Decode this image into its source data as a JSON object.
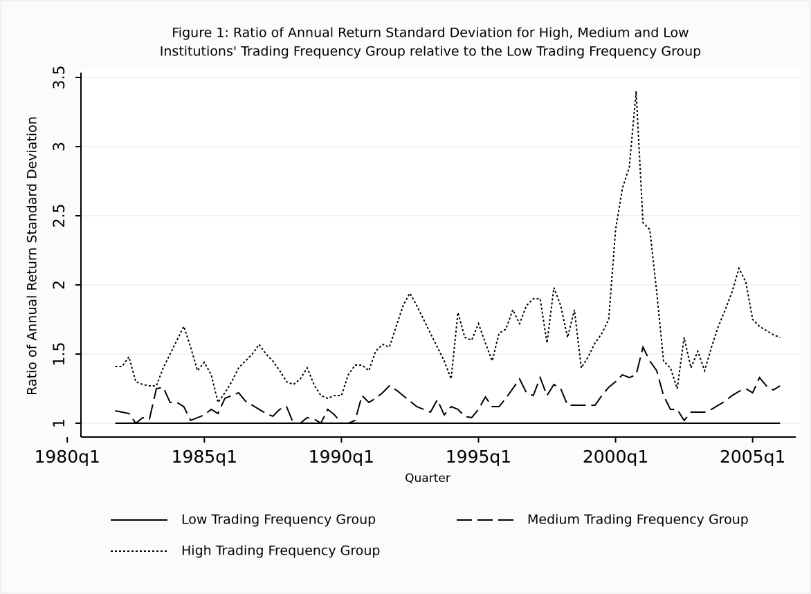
{
  "chart_data": {
    "type": "line",
    "title": [
      "Figure 1: Ratio of Annual Return Standard Deviation for High, Medium and Low",
      "Institutions' Trading Frequency Group relative to the Low Trading Frequency Group"
    ],
    "xlabel": "Quarter",
    "ylabel": "Ratio of Annual Return Standard Deviation",
    "x": [
      "1981q4",
      "1982q1",
      "1982q2",
      "1982q3",
      "1982q4",
      "1983q1",
      "1983q2",
      "1983q3",
      "1983q4",
      "1984q1",
      "1984q2",
      "1984q3",
      "1984q4",
      "1985q1",
      "1985q2",
      "1985q3",
      "1985q4",
      "1986q1",
      "1986q2",
      "1986q3",
      "1986q4",
      "1987q1",
      "1987q2",
      "1987q3",
      "1987q4",
      "1988q1",
      "1988q2",
      "1988q3",
      "1988q4",
      "1989q1",
      "1989q2",
      "1989q3",
      "1989q4",
      "1990q1",
      "1990q2",
      "1990q3",
      "1990q4",
      "1991q1",
      "1991q2",
      "1991q3",
      "1991q4",
      "1992q1",
      "1992q2",
      "1992q3",
      "1992q4",
      "1993q1",
      "1993q2",
      "1993q3",
      "1993q4",
      "1994q1",
      "1994q2",
      "1994q3",
      "1994q4",
      "1995q1",
      "1995q2",
      "1995q3",
      "1995q4",
      "1996q1",
      "1996q2",
      "1996q3",
      "1996q4",
      "1997q1",
      "1997q2",
      "1997q3",
      "1997q4",
      "1998q1",
      "1998q2",
      "1998q3",
      "1998q4",
      "1999q1",
      "1999q2",
      "1999q3",
      "1999q4",
      "2000q1",
      "2000q2",
      "2000q3",
      "2000q4",
      "2001q1",
      "2001q2",
      "2001q3",
      "2001q4",
      "2002q1",
      "2002q2",
      "2002q3",
      "2002q4",
      "2003q1",
      "2003q2",
      "2003q3",
      "2003q4",
      "2004q1",
      "2004q2",
      "2004q3",
      "2004q4",
      "2005q1",
      "2005q2",
      "2005q3",
      "2005q4",
      "2006q1"
    ],
    "series": [
      {
        "name": "Low Trading Frequency Group",
        "color": "#000000",
        "dash": "none",
        "values": [
          1,
          1,
          1,
          1,
          1,
          1,
          1,
          1,
          1,
          1,
          1,
          1,
          1,
          1,
          1,
          1,
          1,
          1,
          1,
          1,
          1,
          1,
          1,
          1,
          1,
          1,
          1,
          1,
          1,
          1,
          1,
          1,
          1,
          1,
          1,
          1,
          1,
          1,
          1,
          1,
          1,
          1,
          1,
          1,
          1,
          1,
          1,
          1,
          1,
          1,
          1,
          1,
          1,
          1,
          1,
          1,
          1,
          1,
          1,
          1,
          1,
          1,
          1,
          1,
          1,
          1,
          1,
          1,
          1,
          1,
          1,
          1,
          1,
          1,
          1,
          1,
          1,
          1,
          1,
          1,
          1,
          1,
          1,
          1,
          1,
          1,
          1,
          1,
          1,
          1,
          1,
          1,
          1,
          1,
          1,
          1,
          1,
          1
        ]
      },
      {
        "name": "Medium Trading Frequency Group",
        "color": "#000000",
        "dash": "22 8",
        "values": [
          1.09,
          1.08,
          1.07,
          1.0,
          1.04,
          1.03,
          1.25,
          1.26,
          1.15,
          1.15,
          1.12,
          1.02,
          1.04,
          1.06,
          1.1,
          1.07,
          1.18,
          1.2,
          1.22,
          1.16,
          1.13,
          1.1,
          1.07,
          1.05,
          1.1,
          1.12,
          1.0,
          1.0,
          1.04,
          1.03,
          1.0,
          1.1,
          1.06,
          1.0,
          1.0,
          1.02,
          1.2,
          1.15,
          1.18,
          1.22,
          1.27,
          1.24,
          1.2,
          1.16,
          1.12,
          1.1,
          1.08,
          1.17,
          1.06,
          1.12,
          1.1,
          1.05,
          1.04,
          1.1,
          1.19,
          1.12,
          1.12,
          1.18,
          1.25,
          1.32,
          1.22,
          1.2,
          1.33,
          1.2,
          1.28,
          1.25,
          1.13,
          1.13,
          1.13,
          1.13,
          1.13,
          1.2,
          1.26,
          1.3,
          1.35,
          1.33,
          1.35,
          1.55,
          1.45,
          1.38,
          1.2,
          1.1,
          1.1,
          1.02,
          1.08,
          1.08,
          1.08,
          1.1,
          1.13,
          1.16,
          1.2,
          1.23,
          1.25,
          1.22,
          1.33,
          1.27,
          1.24,
          1.27
        ]
      },
      {
        "name": "High Trading Frequency Group",
        "color": "#000000",
        "dash": "3 3",
        "values": [
          1.41,
          1.41,
          1.48,
          1.3,
          1.28,
          1.27,
          1.27,
          1.4,
          1.5,
          1.6,
          1.7,
          1.55,
          1.38,
          1.44,
          1.35,
          1.15,
          1.22,
          1.3,
          1.4,
          1.45,
          1.5,
          1.57,
          1.5,
          1.45,
          1.38,
          1.3,
          1.28,
          1.32,
          1.4,
          1.28,
          1.2,
          1.18,
          1.2,
          1.2,
          1.35,
          1.42,
          1.42,
          1.38,
          1.52,
          1.57,
          1.55,
          1.7,
          1.85,
          1.94,
          1.85,
          1.75,
          1.65,
          1.55,
          1.45,
          1.32,
          1.8,
          1.62,
          1.6,
          1.72,
          1.58,
          1.45,
          1.65,
          1.68,
          1.82,
          1.72,
          1.85,
          1.9,
          1.9,
          1.58,
          1.98,
          1.85,
          1.62,
          1.82,
          1.4,
          1.48,
          1.58,
          1.65,
          1.75,
          2.4,
          2.7,
          2.85,
          3.4,
          2.45,
          2.4,
          1.95,
          1.45,
          1.4,
          1.25,
          1.62,
          1.4,
          1.52,
          1.38,
          1.55,
          1.7,
          1.82,
          1.95,
          2.12,
          2.02,
          1.75,
          1.7,
          1.67,
          1.64,
          1.62
        ]
      }
    ],
    "xlim": [
      "1980q3",
      "2006q4"
    ],
    "xticks": [
      "1980q1",
      "1985q1",
      "1990q1",
      "1995q1",
      "2000q1",
      "2005q1"
    ],
    "ylim": [
      0.9,
      3.56
    ],
    "yticks": [
      1,
      1.5,
      2,
      2.5,
      3,
      3.5
    ],
    "grid": true,
    "legend": "bottom"
  }
}
